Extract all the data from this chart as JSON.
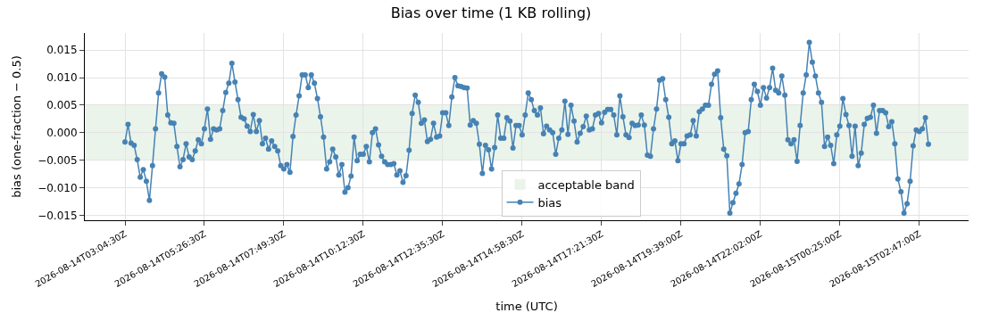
{
  "chart_data": {
    "type": "line",
    "title": "Bias over time (1 KB rolling)",
    "xlabel": "time (UTC)",
    "ylabel": "bias (one-fraction − 0.5)",
    "categories": [
      "2026-08-14T03:04:30Z",
      null,
      null,
      null,
      null,
      null,
      null,
      null,
      null,
      null,
      null,
      null,
      null,
      null,
      null,
      null,
      null,
      null,
      null,
      null,
      null,
      null,
      null,
      null,
      null,
      null,
      "2026-08-14T05:26:30Z",
      null,
      null,
      null,
      null,
      null,
      null,
      null,
      null,
      null,
      null,
      null,
      null,
      null,
      null,
      null,
      null,
      null,
      null,
      null,
      null,
      null,
      null,
      null,
      null,
      null,
      "2026-08-14T07:49:30Z",
      null,
      null,
      null,
      null,
      null,
      null,
      null,
      null,
      null,
      null,
      null,
      null,
      null,
      null,
      null,
      null,
      null,
      null,
      null,
      null,
      null,
      null,
      null,
      null,
      null,
      "2026-08-14T10:12:30Z",
      null,
      null,
      null,
      null,
      null,
      null,
      null,
      null,
      null,
      null,
      null,
      null,
      null,
      null,
      null,
      null,
      null,
      null,
      null,
      null,
      null,
      null,
      null,
      null,
      null,
      "2026-08-14T12:35:30Z",
      null,
      null,
      null,
      null,
      null,
      null,
      null,
      null,
      null,
      null,
      null,
      null,
      null,
      null,
      null,
      null,
      null,
      null,
      null,
      null,
      null,
      null,
      null,
      null,
      null,
      "2026-08-14T14:58:30Z",
      null,
      null,
      null,
      null,
      null,
      null,
      null,
      null,
      null,
      null,
      null,
      null,
      null,
      null,
      null,
      null,
      null,
      null,
      null,
      null,
      null,
      null,
      null,
      null,
      null,
      "2026-08-14T17:21:30Z",
      null,
      null,
      null,
      null,
      null,
      null,
      null,
      null,
      null,
      null,
      null,
      null,
      null,
      null,
      null,
      null,
      null,
      null,
      null,
      null,
      null,
      null,
      null,
      null,
      null,
      "2026-08-14T19:39:00Z",
      null,
      null,
      null,
      null,
      null,
      null,
      null,
      null,
      null,
      null,
      null,
      null,
      null,
      null,
      null,
      null,
      null,
      null,
      null,
      null,
      null,
      null,
      null,
      null,
      null,
      "2026-08-14T22:02:00Z",
      null,
      null,
      null,
      null,
      null,
      null,
      null,
      null,
      null,
      null,
      null,
      null,
      null,
      null,
      null,
      null,
      null,
      null,
      null,
      null,
      null,
      null,
      null,
      null,
      null,
      "2026-08-15T00:25:00Z",
      null,
      null,
      null,
      null,
      null,
      null,
      null,
      null,
      null,
      null,
      null,
      null,
      null,
      null,
      null,
      null,
      null,
      null,
      null,
      null,
      null,
      null,
      null,
      null,
      null,
      "2026-08-15T02:47:00Z",
      null,
      null,
      null
    ],
    "series": [
      {
        "name": "bias",
        "color": "#4682b4",
        "values": [
          -0.0017,
          0.0015,
          -0.0019,
          -0.0023,
          -0.0049,
          -0.0081,
          -0.0067,
          -0.0088,
          -0.0123,
          -0.006,
          0.0007,
          0.0072,
          0.0107,
          0.0101,
          0.0032,
          0.0018,
          0.0017,
          -0.0025,
          -0.0062,
          -0.0049,
          -0.002,
          -0.0044,
          -0.0049,
          -0.0033,
          -0.0013,
          -0.002,
          0.0007,
          0.0043,
          -0.0012,
          0.0007,
          0.0005,
          0.0007,
          0.004,
          0.0073,
          0.009,
          0.0126,
          0.0092,
          0.006,
          0.0028,
          0.0025,
          0.0012,
          0.0002,
          0.0033,
          0.0002,
          0.0022,
          -0.002,
          -0.001,
          -0.003,
          -0.0015,
          -0.0025,
          -0.0033,
          -0.006,
          -0.0066,
          -0.0058,
          -0.0072,
          -0.0007,
          0.0032,
          0.0067,
          0.0105,
          0.0105,
          0.0082,
          0.0105,
          0.009,
          0.0062,
          0.0029,
          -0.0008,
          -0.0066,
          -0.0053,
          -0.003,
          -0.0044,
          -0.0077,
          -0.0058,
          -0.0108,
          -0.01,
          -0.0079,
          -0.0008,
          -0.0051,
          -0.0039,
          -0.0039,
          -0.0025,
          -0.0053,
          0.0,
          0.0007,
          -0.0022,
          -0.0043,
          -0.0053,
          -0.0058,
          -0.0058,
          -0.0056,
          -0.0077,
          -0.0069,
          -0.009,
          -0.0078,
          -0.0032,
          0.0035,
          0.0068,
          0.0055,
          0.0017,
          0.0023,
          -0.0016,
          -0.0012,
          0.0017,
          -0.0008,
          -0.0006,
          0.0036,
          0.0036,
          0.0013,
          0.0065,
          0.01,
          0.0085,
          0.0084,
          0.0082,
          0.0081,
          0.0014,
          0.0022,
          0.0017,
          -0.0021,
          -0.0074,
          -0.0023,
          -0.0031,
          -0.0066,
          -0.0027,
          0.0032,
          -0.001,
          -0.001,
          0.0027,
          0.0021,
          -0.0028,
          0.0013,
          0.0013,
          -0.0004,
          0.0032,
          0.0072,
          0.006,
          0.004,
          0.0032,
          0.0045,
          -0.0002,
          0.0012,
          0.0005,
          0.0,
          -0.0039,
          -0.001,
          0.0005,
          0.0057,
          -0.0003,
          0.005,
          0.0021,
          -0.0017,
          -0.0001,
          0.0011,
          0.003,
          0.0005,
          0.0007,
          0.0032,
          0.0035,
          0.0018,
          0.0037,
          0.0042,
          0.0042,
          0.0032,
          -0.0004,
          0.0067,
          0.0029,
          -0.0004,
          -0.0009,
          0.0017,
          0.0013,
          0.0014,
          0.0032,
          0.0014,
          -0.0041,
          -0.0043,
          0.0007,
          0.0043,
          0.0095,
          0.0098,
          0.006,
          0.0028,
          -0.002,
          -0.0015,
          -0.0051,
          -0.002,
          -0.002,
          -0.0006,
          -0.0004,
          0.0022,
          -0.0006,
          0.0038,
          0.0043,
          0.005,
          0.005,
          0.0088,
          0.0106,
          0.0112,
          0.0027,
          -0.003,
          -0.0042,
          -0.0146,
          -0.0127,
          -0.011,
          -0.0093,
          -0.0058,
          0.0,
          0.0002,
          0.006,
          0.0088,
          0.0075,
          0.005,
          0.0082,
          0.0063,
          0.0082,
          0.0117,
          0.0077,
          0.0072,
          0.0103,
          0.0068,
          -0.0013,
          -0.002,
          -0.0013,
          -0.0052,
          0.0013,
          0.0072,
          0.0105,
          0.0164,
          0.0128,
          0.0103,
          0.0072,
          0.0055,
          -0.0025,
          -0.0008,
          -0.0023,
          -0.0056,
          -0.0004,
          0.0012,
          0.0062,
          0.0033,
          0.0013,
          -0.0043,
          0.0012,
          -0.006,
          -0.0037,
          0.0015,
          0.0026,
          0.0028,
          0.005,
          -0.0001,
          0.004,
          0.004,
          0.0036,
          0.0011,
          0.002,
          -0.002,
          -0.0084,
          -0.0107,
          -0.0146,
          -0.0129,
          -0.0088,
          -0.0024,
          0.0005,
          0.0002,
          0.0007,
          0.0027,
          -0.0021
        ]
      }
    ],
    "bands": [
      {
        "axis": "y",
        "from": -0.005,
        "to": 0.005,
        "label": "acceptable band",
        "color": "#eaf4ea"
      }
    ],
    "ylim": [
      -0.0159,
      0.0181
    ],
    "yticks": [
      {
        "value": -0.015,
        "label": "−0.015"
      },
      {
        "value": -0.01,
        "label": "−0.010"
      },
      {
        "value": -0.005,
        "label": "−0.005"
      },
      {
        "value": 0,
        "label": "0.000"
      },
      {
        "value": 0.005,
        "label": "0.005"
      },
      {
        "value": 0.01,
        "label": "0.010"
      },
      {
        "value": 0.015,
        "label": "0.015"
      }
    ],
    "grid": true,
    "legend": "bottom",
    "marker": "circle",
    "line_style": "solid"
  }
}
